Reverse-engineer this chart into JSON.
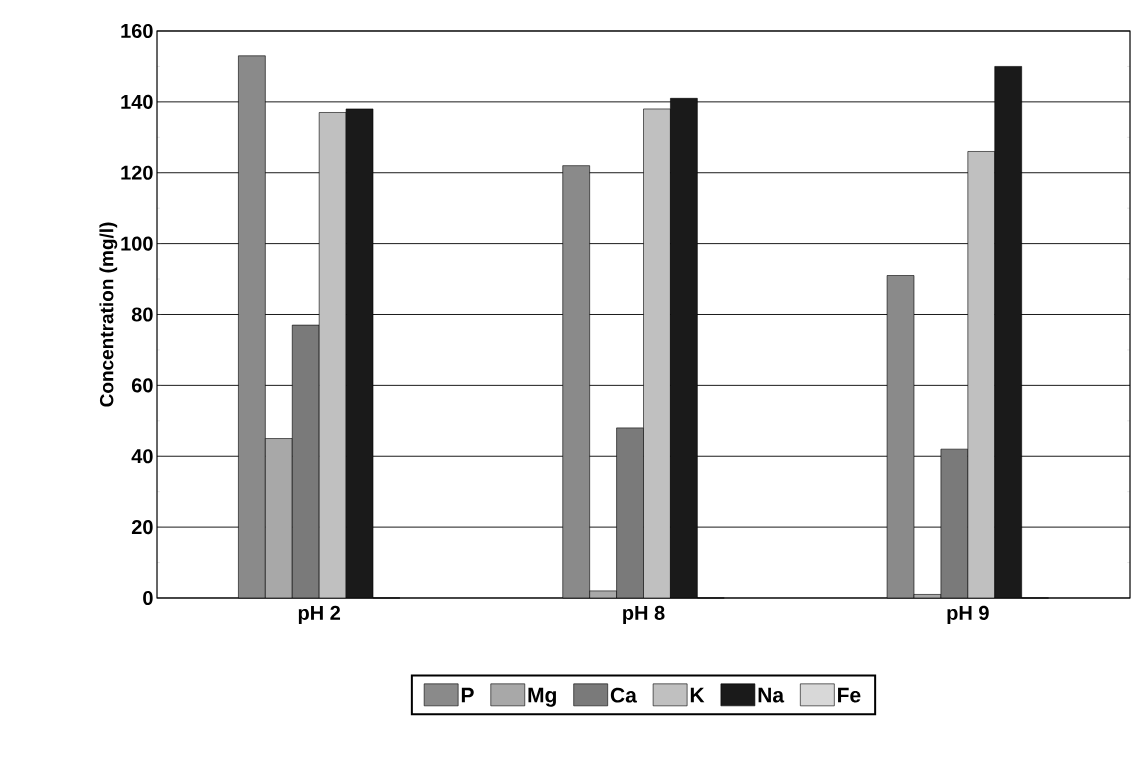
{
  "chart_data": {
    "type": "bar",
    "ylabel": "Concentration (mg/l)",
    "categories": [
      "pH 2",
      "pH 8",
      "pH 9"
    ],
    "series": [
      {
        "name": "P",
        "color": "#8a8a8a",
        "values": [
          153,
          122,
          91
        ]
      },
      {
        "name": "Mg",
        "color": "#a8a8a8",
        "values": [
          45,
          2,
          1
        ]
      },
      {
        "name": "Ca",
        "color": "#7a7a7a",
        "values": [
          77,
          48,
          42
        ]
      },
      {
        "name": "K",
        "color": "#c0c0c0",
        "values": [
          137,
          138,
          126
        ]
      },
      {
        "name": "Na",
        "color": "#1a1a1a",
        "values": [
          138,
          141,
          150
        ]
      },
      {
        "name": "Fe",
        "color": "#d8d8d8",
        "values": [
          0,
          0,
          0
        ]
      }
    ],
    "ylim": [
      0,
      160
    ],
    "yticks": [
      0,
      20,
      40,
      60,
      80,
      100,
      120,
      140,
      160
    ],
    "grid": "y",
    "legend": "bottom"
  }
}
